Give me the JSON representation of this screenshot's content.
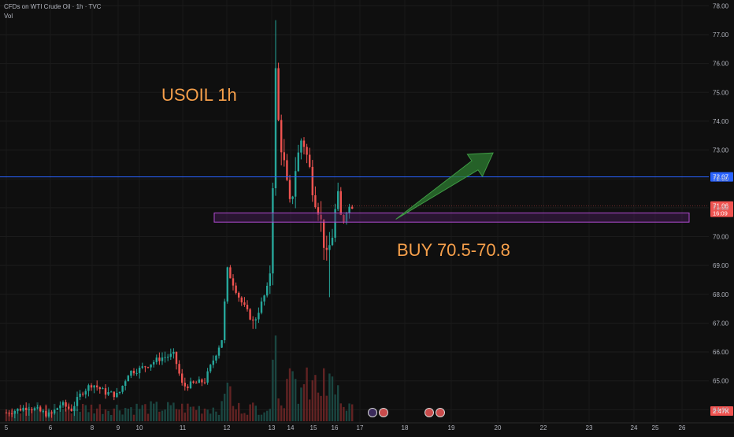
{
  "header": {
    "symbol_line": "CFDs on WTI Crude Oil · 1h · TVC",
    "volume_label": "Vol"
  },
  "annotations": {
    "title": "USOIL 1h",
    "buy_text": "BUY 70.5-70.8"
  },
  "colors": {
    "background": "#0f0f0f",
    "up": "#26a69a",
    "down": "#ef5350",
    "annotation_text": "#f7a04b",
    "zone_border": "#b04ad0",
    "zone_fill": "#4a1d5a",
    "level_line": "#2962ff",
    "arrow": "#2e7d32",
    "axis_text": "#b2b5be",
    "last_price_badge": "#ef5350"
  },
  "chart_data": {
    "type": "candlestick",
    "x_axis_ticks": [
      "5",
      "6",
      "8",
      "9",
      "10",
      "11",
      "12",
      "13",
      "14",
      "15",
      "16",
      "17",
      "18",
      "19",
      "20",
      "22",
      "23",
      "24",
      "25",
      "26"
    ],
    "y_axis_ticks": [
      64.0,
      65.0,
      66.0,
      67.0,
      68.0,
      69.0,
      70.0,
      71.0,
      72.0,
      73.0,
      74.0,
      75.0,
      76.0,
      77.0,
      78.0
    ],
    "ylim": [
      63.6,
      78.2
    ],
    "horizontal_line": {
      "price": 72.07,
      "label": "72.07"
    },
    "last_price": {
      "price": 71.06,
      "label": "71.06",
      "countdown": "16:09"
    },
    "volume_last_label": "2.47K",
    "zone": {
      "low": 70.5,
      "high": 70.8
    },
    "arrow": {
      "from": {
        "day": 17.8,
        "price": 70.6
      },
      "to": {
        "day": 19.9,
        "price": 72.9
      }
    },
    "daily_path": [
      {
        "day": 5.0,
        "price": 63.9
      },
      {
        "day": 5.5,
        "price": 64.1
      },
      {
        "day": 6.0,
        "price": 63.8
      },
      {
        "day": 6.5,
        "price": 64.2
      },
      {
        "day": 7.0,
        "price": 64.0
      },
      {
        "day": 7.5,
        "price": 64.6
      },
      {
        "day": 8.0,
        "price": 64.9
      },
      {
        "day": 8.5,
        "price": 64.6
      },
      {
        "day": 9.0,
        "price": 64.5
      },
      {
        "day": 9.5,
        "price": 65.3
      },
      {
        "day": 10.0,
        "price": 65.4
      },
      {
        "day": 10.5,
        "price": 65.8
      },
      {
        "day": 10.8,
        "price": 65.9
      },
      {
        "day": 11.0,
        "price": 64.8
      },
      {
        "day": 11.5,
        "price": 65.0
      },
      {
        "day": 11.9,
        "price": 66.5
      },
      {
        "day": 12.0,
        "price": 68.9
      },
      {
        "day": 12.3,
        "price": 67.8
      },
      {
        "day": 12.6,
        "price": 67.0
      },
      {
        "day": 12.9,
        "price": 68.2
      },
      {
        "day": 13.0,
        "price": 69.2
      },
      {
        "day": 13.1,
        "price": 73.8
      },
      {
        "day": 13.2,
        "price": 75.8
      },
      {
        "day": 13.4,
        "price": 73.5
      },
      {
        "day": 13.6,
        "price": 72.8
      },
      {
        "day": 13.8,
        "price": 71.8
      },
      {
        "day": 14.0,
        "price": 70.9
      },
      {
        "day": 14.2,
        "price": 72.3
      },
      {
        "day": 14.5,
        "price": 73.5
      },
      {
        "day": 14.8,
        "price": 72.5
      },
      {
        "day": 15.0,
        "price": 71.5
      },
      {
        "day": 15.3,
        "price": 70.8
      },
      {
        "day": 15.6,
        "price": 69.2
      },
      {
        "day": 15.9,
        "price": 70.1
      },
      {
        "day": 16.1,
        "price": 71.5
      },
      {
        "day": 16.3,
        "price": 70.4
      },
      {
        "day": 16.5,
        "price": 71.0
      },
      {
        "day": 16.7,
        "price": 71.06
      }
    ]
  }
}
